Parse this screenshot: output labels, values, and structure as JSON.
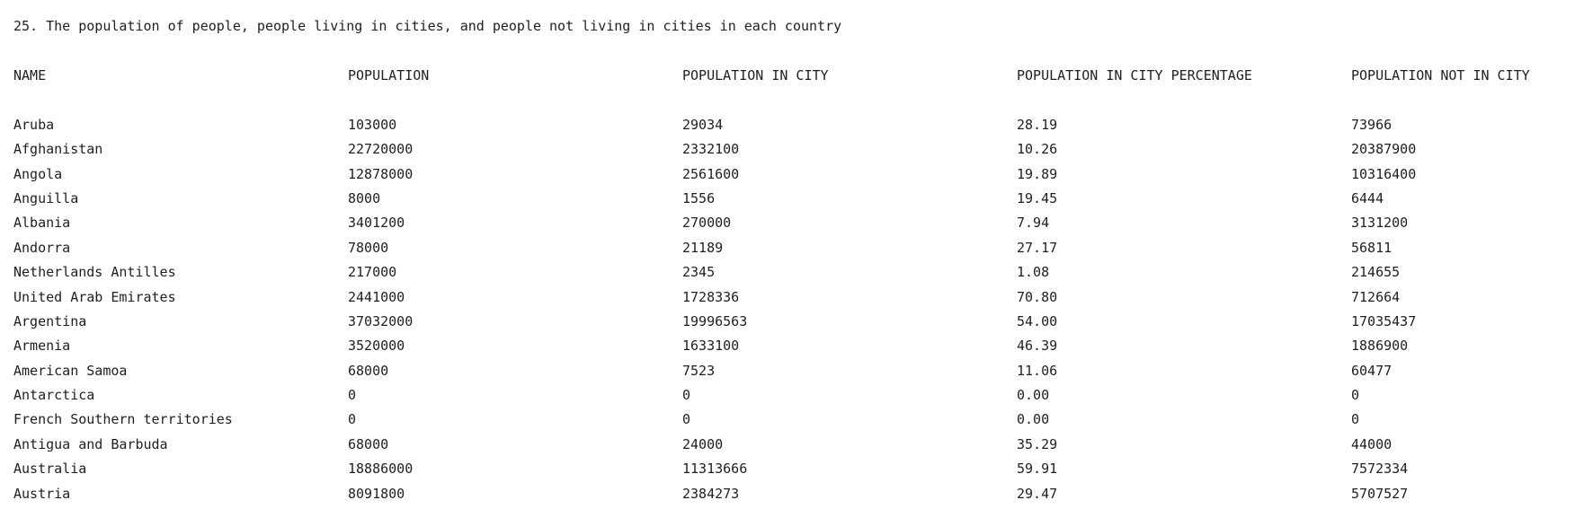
{
  "title": "25. The population of people, people living in cities, and people not living in cities in each country",
  "columns": [
    "NAME",
    "POPULATION",
    "POPULATION IN CITY",
    "POPULATION IN CITY PERCENTAGE",
    "POPULATION NOT IN CITY"
  ],
  "rows": [
    [
      "Aruba",
      "103000",
      "29034",
      "28.19",
      "73966"
    ],
    [
      "Afghanistan",
      "22720000",
      "2332100",
      "10.26",
      "20387900"
    ],
    [
      "Angola",
      "12878000",
      "2561600",
      "19.89",
      "10316400"
    ],
    [
      "Anguilla",
      "8000",
      "1556",
      "19.45",
      "6444"
    ],
    [
      "Albania",
      "3401200",
      "270000",
      "7.94",
      "3131200"
    ],
    [
      "Andorra",
      "78000",
      "21189",
      "27.17",
      "56811"
    ],
    [
      "Netherlands Antilles",
      "217000",
      "2345",
      "1.08",
      "214655"
    ],
    [
      "United Arab Emirates",
      "2441000",
      "1728336",
      "70.80",
      "712664"
    ],
    [
      "Argentina",
      "37032000",
      "19996563",
      "54.00",
      "17035437"
    ],
    [
      "Armenia",
      "3520000",
      "1633100",
      "46.39",
      "1886900"
    ],
    [
      "American Samoa",
      "68000",
      "7523",
      "11.06",
      "60477"
    ],
    [
      "Antarctica",
      "0",
      "0",
      "0.00",
      "0"
    ],
    [
      "French Southern territories",
      "0",
      "0",
      "0.00",
      "0"
    ],
    [
      "Antigua and Barbuda",
      "68000",
      "24000",
      "35.29",
      "44000"
    ],
    [
      "Australia",
      "18886000",
      "11313666",
      "59.91",
      "7572334"
    ],
    [
      "Austria",
      "8091800",
      "2384273",
      "29.47",
      "5707527"
    ]
  ]
}
